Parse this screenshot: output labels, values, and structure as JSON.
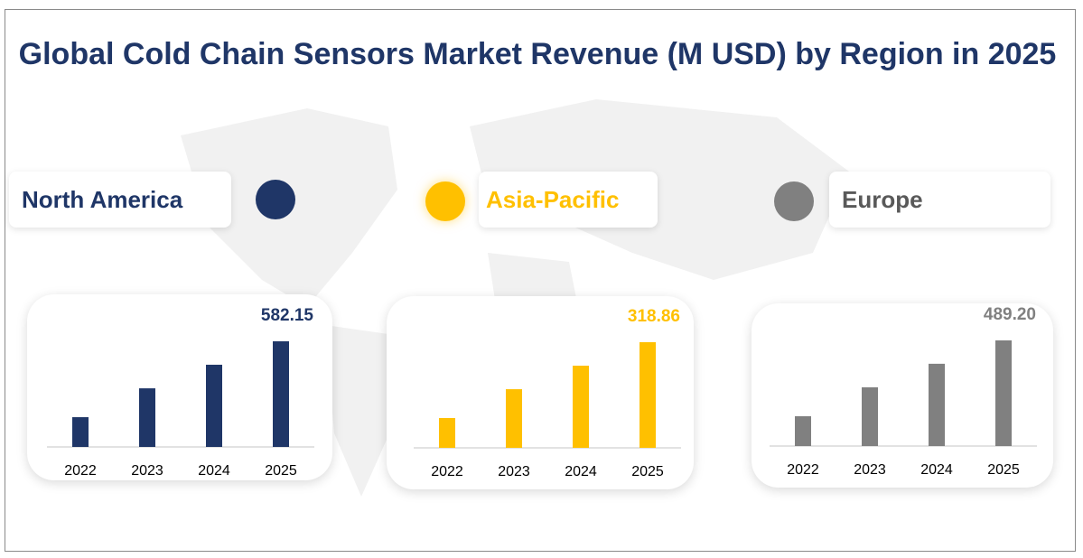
{
  "title": "Global Cold Chain Sensors Market Revenue  (M USD) by Region in 2025",
  "colors": {
    "title": "#1f3667",
    "north_america": "#1f3667",
    "asia_pacific": "#ffc000",
    "europe": "#808080"
  },
  "chart_data": [
    {
      "type": "bar",
      "region": "North America",
      "color": "#1f3667",
      "categories": [
        "2022",
        "2023",
        "2024",
        "2025"
      ],
      "values": [
        164,
        323,
        453,
        582.15
      ],
      "data_label": "582.15"
    },
    {
      "type": "bar",
      "region": "Asia-Pacific",
      "color": "#ffc000",
      "categories": [
        "2022",
        "2023",
        "2024",
        "2025"
      ],
      "values": [
        90,
        177,
        248,
        318.86
      ],
      "data_label": "318.86"
    },
    {
      "type": "bar",
      "region": "Europe",
      "color": "#808080",
      "categories": [
        "2022",
        "2023",
        "2024",
        "2025"
      ],
      "values": [
        138,
        272,
        381,
        489.2
      ],
      "data_label": "489.20"
    }
  ]
}
